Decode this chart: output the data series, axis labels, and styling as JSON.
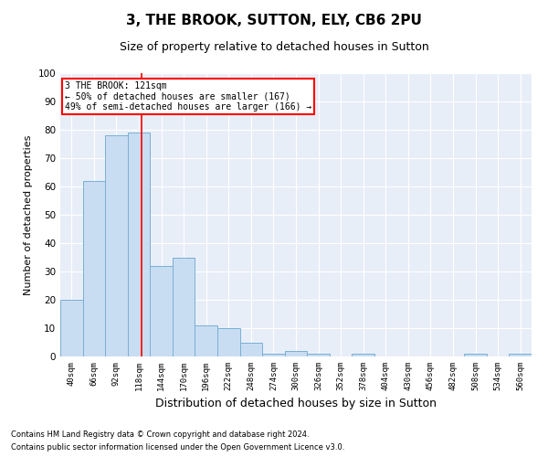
{
  "title1": "3, THE BROOK, SUTTON, ELY, CB6 2PU",
  "title2": "Size of property relative to detached houses in Sutton",
  "xlabel": "Distribution of detached houses by size in Sutton",
  "ylabel": "Number of detached properties",
  "categories": [
    "40sqm",
    "66sqm",
    "92sqm",
    "118sqm",
    "144sqm",
    "170sqm",
    "196sqm",
    "222sqm",
    "248sqm",
    "274sqm",
    "300sqm",
    "326sqm",
    "352sqm",
    "378sqm",
    "404sqm",
    "430sqm",
    "456sqm",
    "482sqm",
    "508sqm",
    "534sqm",
    "560sqm"
  ],
  "values": [
    20,
    62,
    78,
    79,
    32,
    35,
    11,
    10,
    5,
    1,
    2,
    1,
    0,
    1,
    0,
    0,
    0,
    0,
    1,
    0,
    1
  ],
  "bar_color": "#c8ddf2",
  "bar_edge_color": "#7aafd4",
  "annotation_text": "3 THE BROOK: 121sqm\n← 50% of detached houses are smaller (167)\n49% of semi-detached houses are larger (166) →",
  "annotation_box_color": "white",
  "annotation_box_edge_color": "red",
  "red_line_color": "red",
  "ylim": [
    0,
    100
  ],
  "yticks": [
    0,
    10,
    20,
    30,
    40,
    50,
    60,
    70,
    80,
    90,
    100
  ],
  "background_color": "#e8eef8",
  "footer1": "Contains HM Land Registry data © Crown copyright and database right 2024.",
  "footer2": "Contains public sector information licensed under the Open Government Licence v3.0.",
  "title1_fontsize": 11,
  "title2_fontsize": 9,
  "xlabel_fontsize": 9,
  "ylabel_fontsize": 8
}
